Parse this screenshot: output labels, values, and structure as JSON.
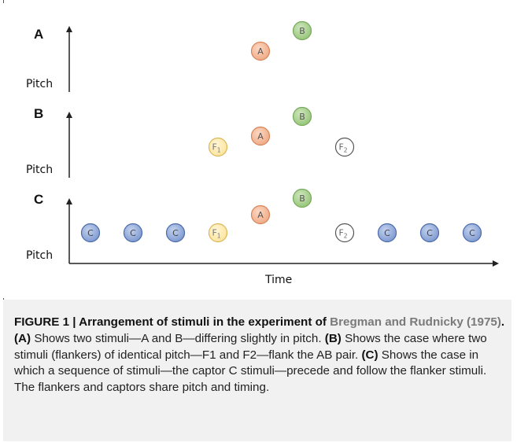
{
  "panels": [
    {
      "letter": "A",
      "ylabel": "Pitch"
    },
    {
      "letter": "B",
      "ylabel": "Pitch"
    },
    {
      "letter": "C",
      "ylabel": "Pitch"
    }
  ],
  "xlabel": "Time",
  "stimuli": {
    "A": {
      "label": "A",
      "fill": "#f3b795",
      "stroke": "#d5845a"
    },
    "B": {
      "label": "B",
      "fill": "#a9d18e",
      "stroke": "#75a95a"
    },
    "F": {
      "fill": "#fde9a9",
      "stroke": "#d8b75a"
    },
    "F2": {
      "fill": "#ffffff",
      "stroke": "#555555"
    },
    "C": {
      "label": "C",
      "fill": "#8faadc",
      "stroke": "#4a6aa8"
    },
    "F1_main": "F",
    "F1_sub": "1",
    "F2_main": "F",
    "F2_sub": "2"
  },
  "caption": {
    "heading": "FIGURE 1 | Arrangement of stimuli in the experiment of ",
    "ref": "Bregman and Rudnicky (1975)",
    "heading_end": ".",
    "a_label": "(A)",
    "a_text": " Shows two stimuli—A and B—differing slightly in pitch. ",
    "b_label": "(B)",
    "b_text": " Shows the case where two stimuli (flankers) of identical pitch—F1 and F2—flank the AB pair. ",
    "c_label": "(C)",
    "c_text": " Shows the case in which a sequence of stimuli—the captor C stimuli—precede and follow the flanker stimuli. The flankers and captors share pitch and timing."
  }
}
